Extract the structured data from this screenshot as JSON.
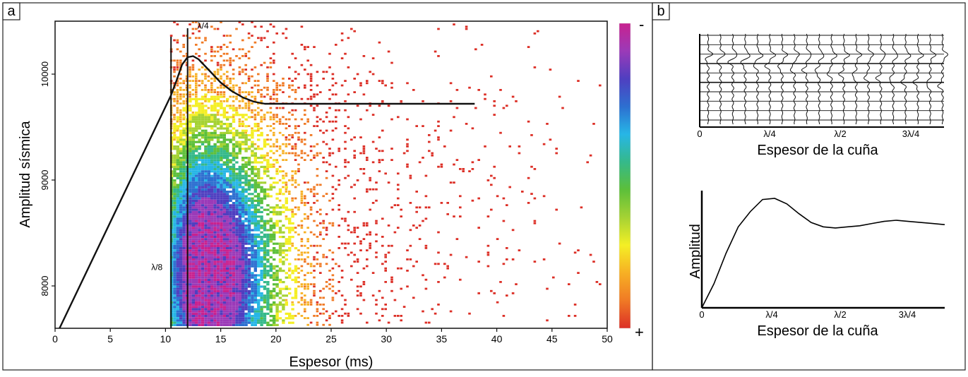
{
  "panels": {
    "a": {
      "label": "a"
    },
    "b": {
      "label": "b"
    }
  },
  "chart_data": [
    {
      "id": "panel-a",
      "type": "heatmap",
      "title": "",
      "xlabel": "Espesor (ms)",
      "ylabel": "Amplitud sísmica",
      "xlim": [
        0,
        50
      ],
      "ylim": [
        7600,
        10500
      ],
      "x_ticks": [
        0,
        5,
        10,
        15,
        20,
        25,
        30,
        35,
        40,
        45,
        50
      ],
      "x_tick_labels": [
        "0",
        "5",
        "10",
        "15",
        "20",
        "25",
        "30",
        "35",
        "40",
        "45",
        "50"
      ],
      "y_ticks": [
        8000,
        9000,
        10000
      ],
      "y_tick_labels": [
        "8000",
        "9000",
        "10000"
      ],
      "grid": false,
      "colorbar": {
        "top_label": "-",
        "bottom_label": "+",
        "colors": [
          "#c8228f",
          "#9b3ab8",
          "#4f3fc0",
          "#2d6fd0",
          "#27b6e6",
          "#35b98a",
          "#5cbf3a",
          "#a5d234",
          "#f4ef25",
          "#f7b024",
          "#f07a25",
          "#dc2f26"
        ]
      },
      "density": {
        "peak_x": 13.5,
        "peak_y": 8100,
        "spread_x": 3.5,
        "spread_y": 700,
        "sparse_extent_x": [
          8,
          50
        ],
        "sparse_extent_y": [
          7600,
          10500
        ]
      },
      "vertical_lines": [
        {
          "x": 10.5,
          "label": "λ/8",
          "label_y": 8150
        },
        {
          "x": 12.0,
          "label": "λ/4",
          "label_y": 10430
        }
      ],
      "tuning_curve": {
        "x": [
          0.4,
          10.5,
          11.0,
          11.5,
          12.0,
          12.5,
          13.0,
          14.0,
          15.0,
          16.0,
          17.0,
          18.0,
          19.0,
          25.0,
          30.0,
          38.0
        ],
        "y": [
          7600,
          9800,
          9940,
          10090,
          10160,
          10170,
          10140,
          10030,
          9920,
          9840,
          9780,
          9740,
          9720,
          9720,
          9720,
          9720
        ]
      }
    },
    {
      "id": "panel-b-top",
      "type": "line",
      "title": "",
      "xlabel": "Espesor de la cuña",
      "ylabel": "",
      "x_tick_labels": [
        "0",
        "λ/4",
        "λ/2",
        "3λ/4"
      ],
      "n_traces": 20,
      "n_rows": 10
    },
    {
      "id": "panel-b-bottom",
      "type": "line",
      "title": "",
      "xlabel": "Espesor de la cuña",
      "ylabel": "Amplitud",
      "x_tick_labels": [
        "0",
        "λ/4",
        "λ/2",
        "3λ/4"
      ],
      "x": [
        0,
        0.05,
        0.1,
        0.15,
        0.2,
        0.25,
        0.3,
        0.35,
        0.4,
        0.45,
        0.5,
        0.55,
        0.6,
        0.65,
        0.7,
        0.75,
        0.8,
        0.85,
        0.9,
        0.95,
        1.0
      ],
      "values": [
        0.0,
        0.22,
        0.5,
        0.74,
        0.88,
        0.99,
        1.0,
        0.95,
        0.86,
        0.78,
        0.74,
        0.73,
        0.74,
        0.75,
        0.77,
        0.79,
        0.8,
        0.79,
        0.78,
        0.77,
        0.76
      ]
    }
  ]
}
